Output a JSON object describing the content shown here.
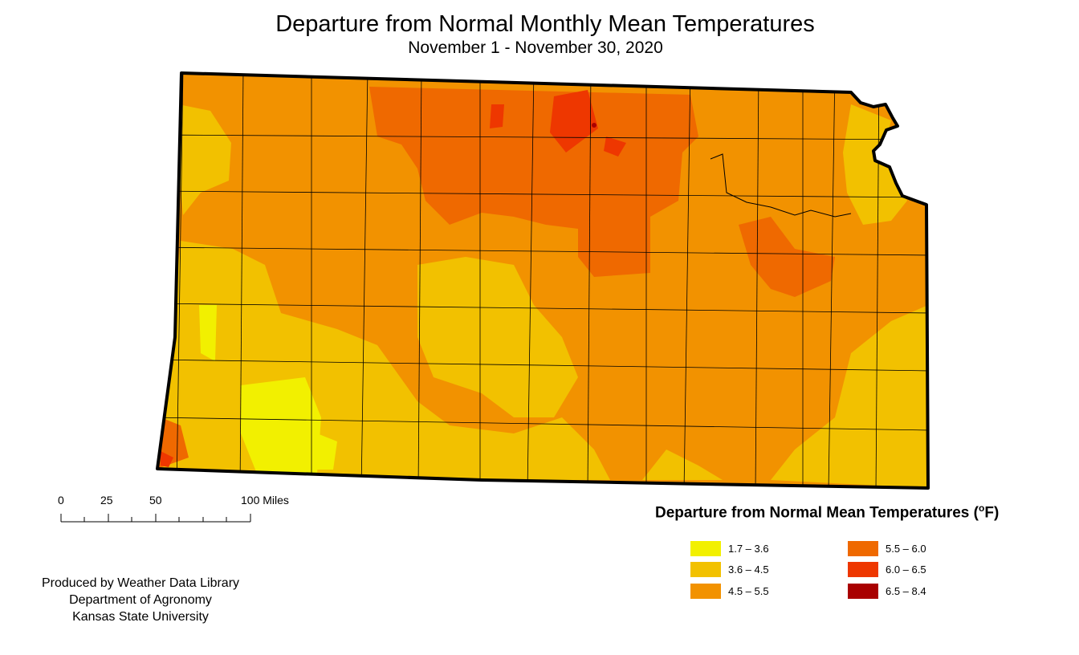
{
  "map": {
    "title": "Departure from Normal Monthly Mean Temperatures",
    "subtitle": "November 1 - November 30, 2020",
    "region": "Kansas counties",
    "dominant_class": "4.5 – 5.5"
  },
  "legend": {
    "title_text": "Departure from Normal Mean Temperatures (",
    "unit_degree": "o",
    "unit_letter": "F",
    "title_close": ")",
    "items": [
      {
        "label": "1.7 – 3.6",
        "color": "#f2f000"
      },
      {
        "label": "3.6 – 4.5",
        "color": "#f2c100"
      },
      {
        "label": "4.5 – 5.5",
        "color": "#f29200"
      },
      {
        "label": "5.5 – 6.0",
        "color": "#ef6900"
      },
      {
        "label": "6.0 – 6.5",
        "color": "#ee3700"
      },
      {
        "label": "6.5 – 8.4",
        "color": "#a90000"
      }
    ]
  },
  "scale": {
    "labels": [
      "0",
      "25",
      "50",
      "100 Miles"
    ]
  },
  "credits": {
    "line1": "Produced by Weather Data Library",
    "line2": "Department of Agronomy",
    "line3": "Kansas State University"
  }
}
